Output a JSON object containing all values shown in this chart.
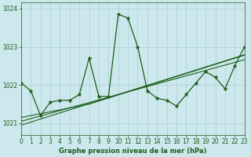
{
  "title": "Graphe pression niveau de la mer (hPa)",
  "bg_color": "#cde8ed",
  "grid_color": "#aacdd5",
  "line_color": "#1a5e1a",
  "x_min": 0,
  "x_max": 23,
  "y_min": 1020.7,
  "y_max": 1024.15,
  "yticks": [
    1021,
    1022,
    1023,
    1024
  ],
  "xticks": [
    0,
    1,
    2,
    3,
    4,
    5,
    6,
    7,
    8,
    9,
    10,
    11,
    12,
    13,
    14,
    15,
    16,
    17,
    18,
    19,
    20,
    21,
    22,
    23
  ],
  "main_series": [
    1022.05,
    1021.85,
    1021.2,
    1021.55,
    1021.6,
    1021.6,
    1021.75,
    1022.7,
    1021.7,
    1021.7,
    1023.85,
    1023.75,
    1023.0,
    1021.85,
    1021.65,
    1021.6,
    1021.45,
    1021.75,
    1022.05,
    1022.35,
    1022.2,
    1021.9,
    1022.5,
    1023.0
  ],
  "trend1": [
    1021.15,
    1021.2,
    1021.25,
    1021.3,
    1021.35,
    1021.4,
    1021.45,
    1021.5,
    1021.58,
    1021.66,
    1021.74,
    1021.82,
    1021.9,
    1021.98,
    1022.06,
    1022.14,
    1022.22,
    1022.3,
    1022.38,
    1022.46,
    1022.54,
    1022.62,
    1022.7,
    1022.78
  ],
  "trend2": [
    1021.05,
    1021.12,
    1021.19,
    1021.26,
    1021.33,
    1021.4,
    1021.47,
    1021.54,
    1021.61,
    1021.68,
    1021.75,
    1021.82,
    1021.89,
    1021.96,
    1022.03,
    1022.1,
    1022.17,
    1022.24,
    1022.31,
    1022.38,
    1022.45,
    1022.52,
    1022.59,
    1022.66
  ],
  "trend3": [
    1020.95,
    1021.03,
    1021.11,
    1021.19,
    1021.27,
    1021.35,
    1021.43,
    1021.51,
    1021.59,
    1021.67,
    1021.75,
    1021.83,
    1021.91,
    1021.99,
    1022.07,
    1022.15,
    1022.23,
    1022.31,
    1022.39,
    1022.47,
    1022.55,
    1022.63,
    1022.71,
    1022.79
  ],
  "marker": "*",
  "marker_size": 3.5,
  "line_width": 0.9,
  "tick_fontsize": 5.5,
  "xlabel_fontsize": 6.0
}
